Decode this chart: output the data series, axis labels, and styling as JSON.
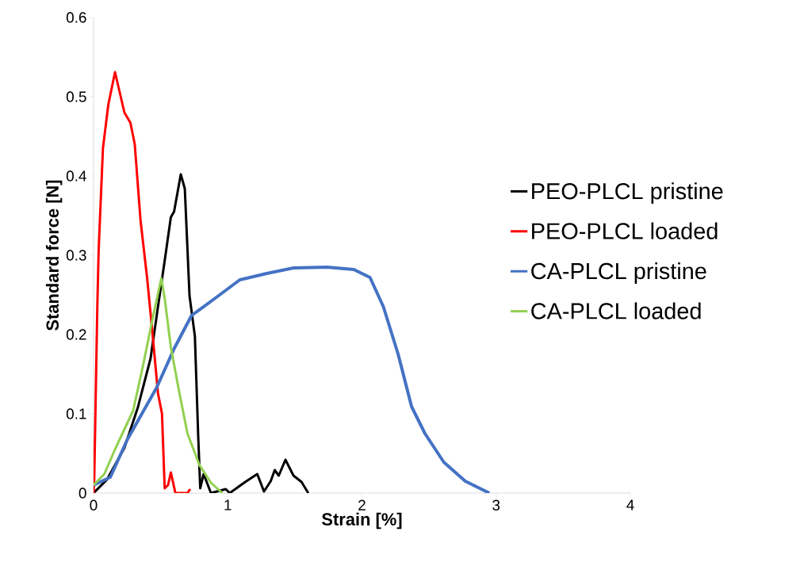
{
  "chart_data": {
    "type": "line",
    "xlabel": "Strain [%]",
    "ylabel": "Standard force [N]",
    "xlim": [
      0,
      4
    ],
    "ylim": [
      0,
      0.6
    ],
    "xticks": [
      0,
      1,
      2,
      3,
      4
    ],
    "yticks": [
      0,
      0.1,
      0.2,
      0.3,
      0.4,
      0.5,
      0.6
    ],
    "grid": false,
    "legend": "right",
    "marker": "none",
    "line_style": "solid",
    "series": [
      {
        "name": "PEO-PLCL pristine",
        "color": "#000000",
        "x": [
          0,
          0.1,
          0.23,
          0.33,
          0.425,
          0.48,
          0.53,
          0.576,
          0.6,
          0.65,
          0.68,
          0.7,
          0.715,
          0.755,
          0.78,
          0.795,
          0.82,
          0.875,
          0.985,
          1.015,
          1.13,
          1.22,
          1.27,
          1.32,
          1.35,
          1.38,
          1.43,
          1.49,
          1.55,
          1.6
        ],
        "values": [
          0,
          0.017,
          0.057,
          0.108,
          0.17,
          0.235,
          0.293,
          0.348,
          0.355,
          0.402,
          0.384,
          0.307,
          0.249,
          0.198,
          0.071,
          0.006,
          0.024,
          0,
          0.005,
          0,
          0.014,
          0.024,
          0.002,
          0.015,
          0.029,
          0.022,
          0.042,
          0.022,
          0.014,
          0
        ]
      },
      {
        "name": "PEO-PLCL loaded",
        "color": "#ff0000",
        "x": [
          0,
          0.005,
          0.028,
          0.038,
          0.07,
          0.11,
          0.16,
          0.23,
          0.275,
          0.307,
          0.35,
          0.4,
          0.44,
          0.48,
          0.51,
          0.53,
          0.555,
          0.576,
          0.61,
          0.7,
          0.72
        ],
        "values": [
          0,
          0.017,
          0.235,
          0.307,
          0.435,
          0.49,
          0.531,
          0.48,
          0.467,
          0.44,
          0.344,
          0.27,
          0.2,
          0.126,
          0.1,
          0.006,
          0.01,
          0.026,
          0,
          0,
          0.005
        ]
      },
      {
        "name": "CA-PLCL pristine",
        "color": "#4472c4",
        "x": [
          0,
          0.125,
          0.25,
          0.36,
          0.47,
          0.6,
          0.73,
          0.9,
          1.09,
          1.29,
          1.49,
          1.74,
          1.94,
          2.06,
          2.16,
          2.27,
          2.37,
          2.47,
          2.61,
          2.77,
          2.95
        ],
        "values": [
          0.01,
          0.02,
          0.067,
          0.1,
          0.133,
          0.182,
          0.224,
          0.245,
          0.269,
          0.277,
          0.284,
          0.285,
          0.282,
          0.272,
          0.235,
          0.175,
          0.109,
          0.075,
          0.039,
          0.015,
          0
        ]
      },
      {
        "name": "CA-PLCL loaded",
        "color": "#92d050",
        "x": [
          0,
          0.08,
          0.165,
          0.295,
          0.37,
          0.44,
          0.505,
          0.53,
          0.576,
          0.64,
          0.7,
          0.79,
          0.875,
          0.96
        ],
        "values": [
          0.01,
          0.024,
          0.057,
          0.104,
          0.162,
          0.22,
          0.271,
          0.246,
          0.184,
          0.126,
          0.075,
          0.035,
          0.013,
          0
        ]
      }
    ]
  }
}
